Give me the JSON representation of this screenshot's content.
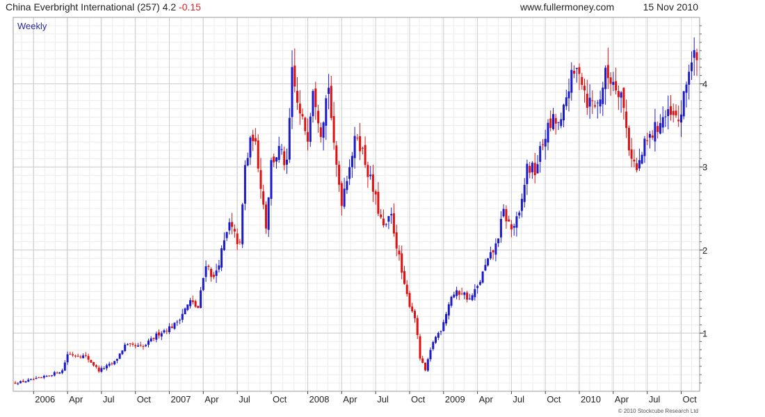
{
  "header": {
    "title": "China Everbright International (257)",
    "last": "4.2",
    "change": "-0.15",
    "site": "www.fullermoney.com",
    "date": "15 Nov 2010"
  },
  "chart_data": {
    "type": "candlestick",
    "period_label": "Weekly",
    "ylim": [
      0.3,
      4.8
    ],
    "y_ticks": [
      1,
      2,
      3,
      4
    ],
    "x_range": [
      "2005-11-14",
      "2010-11-15"
    ],
    "x_ticks": [
      {
        "label": "2006",
        "date": "2006-01-02"
      },
      {
        "label": "Apr",
        "date": "2006-04-03"
      },
      {
        "label": "Jul",
        "date": "2006-07-03"
      },
      {
        "label": "Oct",
        "date": "2006-10-02"
      },
      {
        "label": "2007",
        "date": "2007-01-01"
      },
      {
        "label": "Apr",
        "date": "2007-04-02"
      },
      {
        "label": "Jul",
        "date": "2007-07-02"
      },
      {
        "label": "Oct",
        "date": "2007-10-01"
      },
      {
        "label": "2008",
        "date": "2008-01-07"
      },
      {
        "label": "Apr",
        "date": "2008-04-07"
      },
      {
        "label": "Jul",
        "date": "2008-07-07"
      },
      {
        "label": "Oct",
        "date": "2008-10-06"
      },
      {
        "label": "2009",
        "date": "2009-01-05"
      },
      {
        "label": "Apr",
        "date": "2009-04-06"
      },
      {
        "label": "Jul",
        "date": "2009-07-06"
      },
      {
        "label": "Oct",
        "date": "2009-10-05"
      },
      {
        "label": "2010",
        "date": "2010-01-04"
      },
      {
        "label": "Apr",
        "date": "2010-04-05"
      },
      {
        "label": "Jul",
        "date": "2010-07-05"
      },
      {
        "label": "Oct",
        "date": "2010-10-04"
      }
    ],
    "colors": {
      "up": "#1a1acc",
      "down": "#e01010",
      "grid": "#cccccc",
      "minor_grid": "#ececec"
    },
    "anchors": [
      [
        "2005-11-14",
        0.4
      ],
      [
        "2006-01-23",
        0.46
      ],
      [
        "2006-03-20",
        0.55
      ],
      [
        "2006-04-03",
        0.75
      ],
      [
        "2006-05-22",
        0.72
      ],
      [
        "2006-06-26",
        0.55
      ],
      [
        "2006-08-07",
        0.65
      ],
      [
        "2006-09-04",
        0.85
      ],
      [
        "2006-10-23",
        0.83
      ],
      [
        "2006-12-04",
        1.0
      ],
      [
        "2007-01-15",
        1.1
      ],
      [
        "2007-02-26",
        1.38
      ],
      [
        "2007-03-19",
        1.3
      ],
      [
        "2007-04-09",
        1.85
      ],
      [
        "2007-04-30",
        1.65
      ],
      [
        "2007-06-11",
        2.3
      ],
      [
        "2007-07-09",
        2.05
      ],
      [
        "2007-07-23",
        3.0
      ],
      [
        "2007-08-13",
        3.4
      ],
      [
        "2007-08-27",
        3.05
      ],
      [
        "2007-09-17",
        2.3
      ],
      [
        "2007-10-01",
        3.05
      ],
      [
        "2007-10-22",
        3.2
      ],
      [
        "2007-11-12",
        3.0
      ],
      [
        "2007-11-26",
        4.1
      ],
      [
        "2007-12-17",
        3.6
      ],
      [
        "2008-01-07",
        3.4
      ],
      [
        "2008-01-21",
        4.0
      ],
      [
        "2008-02-11",
        3.45
      ],
      [
        "2008-03-03",
        4.0
      ],
      [
        "2008-03-17",
        3.2
      ],
      [
        "2008-04-07",
        2.6
      ],
      [
        "2008-04-28",
        3.05
      ],
      [
        "2008-05-19",
        3.4
      ],
      [
        "2008-06-16",
        2.95
      ],
      [
        "2008-07-07",
        2.6
      ],
      [
        "2008-07-28",
        2.25
      ],
      [
        "2008-08-18",
        2.4
      ],
      [
        "2008-09-08",
        1.9
      ],
      [
        "2008-09-22",
        1.55
      ],
      [
        "2008-10-06",
        1.35
      ],
      [
        "2008-10-20",
        1.2
      ],
      [
        "2008-11-03",
        0.7
      ],
      [
        "2008-11-17",
        0.55
      ],
      [
        "2008-12-08",
        0.9
      ],
      [
        "2008-12-29",
        1.05
      ],
      [
        "2009-01-26",
        1.45
      ],
      [
        "2009-02-23",
        1.5
      ],
      [
        "2009-03-16",
        1.4
      ],
      [
        "2009-04-06",
        1.55
      ],
      [
        "2009-04-27",
        1.8
      ],
      [
        "2009-05-25",
        2.05
      ],
      [
        "2009-06-15",
        2.45
      ],
      [
        "2009-07-06",
        2.25
      ],
      [
        "2009-07-27",
        2.4
      ],
      [
        "2009-08-17",
        3.0
      ],
      [
        "2009-09-07",
        2.95
      ],
      [
        "2009-10-05",
        3.4
      ],
      [
        "2009-10-26",
        3.55
      ],
      [
        "2009-11-16",
        3.5
      ],
      [
        "2009-12-07",
        4.0
      ],
      [
        "2010-01-04",
        4.2
      ],
      [
        "2010-01-25",
        3.8
      ],
      [
        "2010-02-22",
        3.75
      ],
      [
        "2010-03-15",
        4.1
      ],
      [
        "2010-04-05",
        4.05
      ],
      [
        "2010-04-26",
        3.9
      ],
      [
        "2010-05-17",
        3.25
      ],
      [
        "2010-06-07",
        2.95
      ],
      [
        "2010-06-28",
        3.25
      ],
      [
        "2010-07-19",
        3.4
      ],
      [
        "2010-08-16",
        3.6
      ],
      [
        "2010-09-06",
        3.6
      ],
      [
        "2010-09-27",
        3.55
      ],
      [
        "2010-10-11",
        3.8
      ],
      [
        "2010-10-25",
        4.2
      ],
      [
        "2010-11-08",
        4.35
      ],
      [
        "2010-11-15",
        4.2
      ]
    ]
  },
  "footer": {
    "copyright": "© 2010 Stockcube Research Ltd"
  }
}
